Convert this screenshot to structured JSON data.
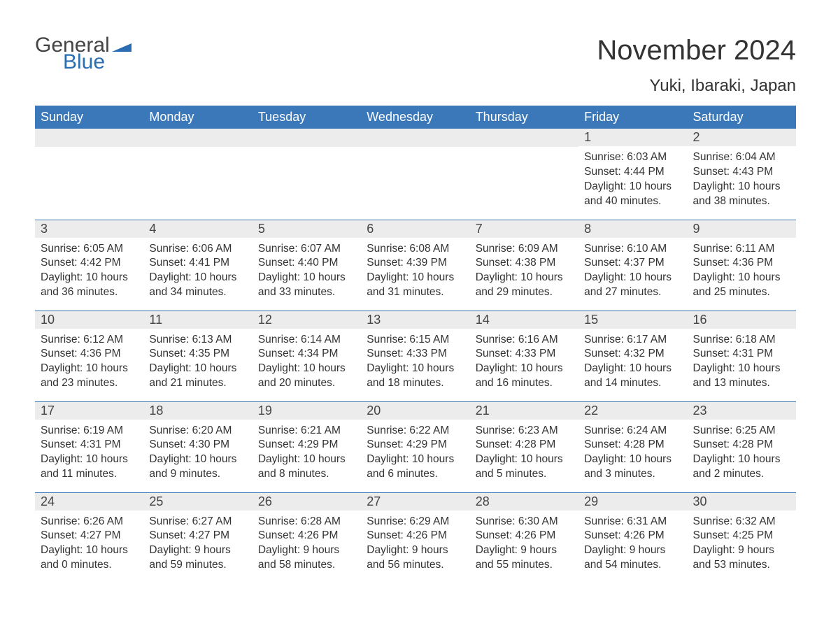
{
  "brand": {
    "general": "General",
    "blue": "Blue",
    "flag_color": "#2a6db3"
  },
  "title": "November 2024",
  "location": "Yuki, Ibaraki, Japan",
  "weekdays": [
    "Sunday",
    "Monday",
    "Tuesday",
    "Wednesday",
    "Thursday",
    "Friday",
    "Saturday"
  ],
  "style": {
    "header_bg": "#3b78b9",
    "header_text": "#ffffff",
    "daynum_bg": "#ececec",
    "border_color": "#3b78b9",
    "body_text": "#333333",
    "cell_fontsize": 15.5,
    "header_fontsize": 18,
    "title_fontsize": 40,
    "location_fontsize": 24
  },
  "leading_blanks": 5,
  "days": [
    {
      "n": "1",
      "sunrise": "6:03 AM",
      "sunset": "4:44 PM",
      "dl": "10 hours and 40 minutes."
    },
    {
      "n": "2",
      "sunrise": "6:04 AM",
      "sunset": "4:43 PM",
      "dl": "10 hours and 38 minutes."
    },
    {
      "n": "3",
      "sunrise": "6:05 AM",
      "sunset": "4:42 PM",
      "dl": "10 hours and 36 minutes."
    },
    {
      "n": "4",
      "sunrise": "6:06 AM",
      "sunset": "4:41 PM",
      "dl": "10 hours and 34 minutes."
    },
    {
      "n": "5",
      "sunrise": "6:07 AM",
      "sunset": "4:40 PM",
      "dl": "10 hours and 33 minutes."
    },
    {
      "n": "6",
      "sunrise": "6:08 AM",
      "sunset": "4:39 PM",
      "dl": "10 hours and 31 minutes."
    },
    {
      "n": "7",
      "sunrise": "6:09 AM",
      "sunset": "4:38 PM",
      "dl": "10 hours and 29 minutes."
    },
    {
      "n": "8",
      "sunrise": "6:10 AM",
      "sunset": "4:37 PM",
      "dl": "10 hours and 27 minutes."
    },
    {
      "n": "9",
      "sunrise": "6:11 AM",
      "sunset": "4:36 PM",
      "dl": "10 hours and 25 minutes."
    },
    {
      "n": "10",
      "sunrise": "6:12 AM",
      "sunset": "4:36 PM",
      "dl": "10 hours and 23 minutes."
    },
    {
      "n": "11",
      "sunrise": "6:13 AM",
      "sunset": "4:35 PM",
      "dl": "10 hours and 21 minutes."
    },
    {
      "n": "12",
      "sunrise": "6:14 AM",
      "sunset": "4:34 PM",
      "dl": "10 hours and 20 minutes."
    },
    {
      "n": "13",
      "sunrise": "6:15 AM",
      "sunset": "4:33 PM",
      "dl": "10 hours and 18 minutes."
    },
    {
      "n": "14",
      "sunrise": "6:16 AM",
      "sunset": "4:33 PM",
      "dl": "10 hours and 16 minutes."
    },
    {
      "n": "15",
      "sunrise": "6:17 AM",
      "sunset": "4:32 PM",
      "dl": "10 hours and 14 minutes."
    },
    {
      "n": "16",
      "sunrise": "6:18 AM",
      "sunset": "4:31 PM",
      "dl": "10 hours and 13 minutes."
    },
    {
      "n": "17",
      "sunrise": "6:19 AM",
      "sunset": "4:31 PM",
      "dl": "10 hours and 11 minutes."
    },
    {
      "n": "18",
      "sunrise": "6:20 AM",
      "sunset": "4:30 PM",
      "dl": "10 hours and 9 minutes."
    },
    {
      "n": "19",
      "sunrise": "6:21 AM",
      "sunset": "4:29 PM",
      "dl": "10 hours and 8 minutes."
    },
    {
      "n": "20",
      "sunrise": "6:22 AM",
      "sunset": "4:29 PM",
      "dl": "10 hours and 6 minutes."
    },
    {
      "n": "21",
      "sunrise": "6:23 AM",
      "sunset": "4:28 PM",
      "dl": "10 hours and 5 minutes."
    },
    {
      "n": "22",
      "sunrise": "6:24 AM",
      "sunset": "4:28 PM",
      "dl": "10 hours and 3 minutes."
    },
    {
      "n": "23",
      "sunrise": "6:25 AM",
      "sunset": "4:28 PM",
      "dl": "10 hours and 2 minutes."
    },
    {
      "n": "24",
      "sunrise": "6:26 AM",
      "sunset": "4:27 PM",
      "dl": "10 hours and 0 minutes."
    },
    {
      "n": "25",
      "sunrise": "6:27 AM",
      "sunset": "4:27 PM",
      "dl": "9 hours and 59 minutes."
    },
    {
      "n": "26",
      "sunrise": "6:28 AM",
      "sunset": "4:26 PM",
      "dl": "9 hours and 58 minutes."
    },
    {
      "n": "27",
      "sunrise": "6:29 AM",
      "sunset": "4:26 PM",
      "dl": "9 hours and 56 minutes."
    },
    {
      "n": "28",
      "sunrise": "6:30 AM",
      "sunset": "4:26 PM",
      "dl": "9 hours and 55 minutes."
    },
    {
      "n": "29",
      "sunrise": "6:31 AM",
      "sunset": "4:26 PM",
      "dl": "9 hours and 54 minutes."
    },
    {
      "n": "30",
      "sunrise": "6:32 AM",
      "sunset": "4:25 PM",
      "dl": "9 hours and 53 minutes."
    }
  ],
  "labels": {
    "sunrise": "Sunrise: ",
    "sunset": "Sunset: ",
    "daylight": "Daylight: "
  }
}
